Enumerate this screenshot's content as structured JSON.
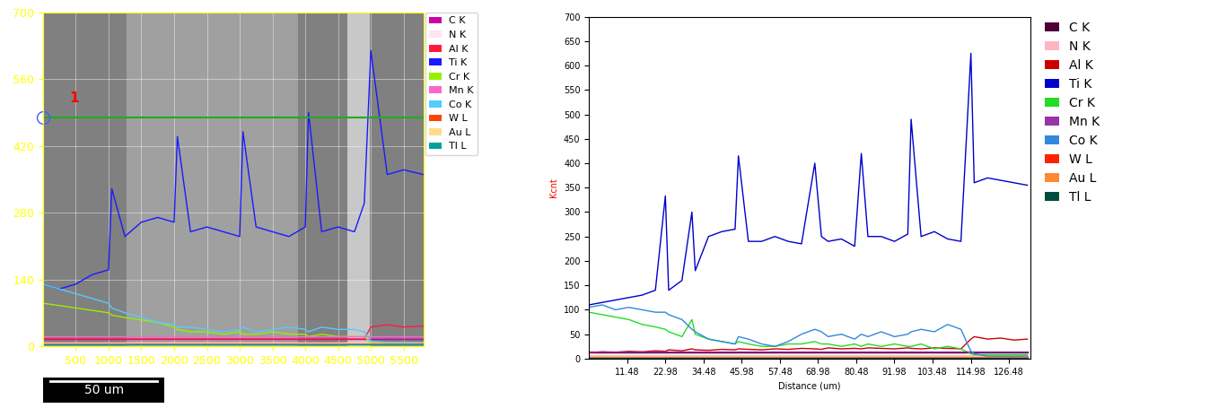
{
  "chart_data": [
    {
      "type": "line",
      "grid": true,
      "legend": "upper left",
      "annotations": [
        "1",
        "50 um"
      ],
      "xlim": [
        0,
        5800
      ],
      "ylim": [
        0,
        700
      ],
      "xticks": [
        500,
        1000,
        1500,
        2000,
        2500,
        3000,
        3500,
        4000,
        4500,
        5000,
        5500
      ],
      "yticks": [
        0,
        140,
        280,
        420,
        560,
        700
      ],
      "x": [
        0,
        250,
        500,
        750,
        1000,
        1050,
        1250,
        1500,
        1750,
        2000,
        2050,
        2250,
        2500,
        2750,
        3000,
        3050,
        3250,
        3500,
        3750,
        4000,
        4050,
        4250,
        4500,
        4750,
        4900,
        5000,
        5250,
        5500,
        5800
      ],
      "series": [
        {
          "name": "C K",
          "color": "#cc00aa",
          "values": [
            15,
            15,
            15,
            15,
            15,
            15,
            15,
            15,
            15,
            15,
            15,
            15,
            15,
            15,
            15,
            15,
            15,
            15,
            15,
            15,
            15,
            15,
            15,
            15,
            15,
            15,
            15,
            15,
            15
          ]
        },
        {
          "name": "N K",
          "color": "#ffe6f0",
          "values": [
            8,
            8,
            8,
            8,
            8,
            8,
            8,
            8,
            8,
            8,
            8,
            8,
            8,
            8,
            8,
            8,
            8,
            8,
            8,
            8,
            8,
            8,
            8,
            8,
            8,
            8,
            8,
            8,
            8
          ]
        },
        {
          "name": "Al K",
          "color": "#ff1a3c",
          "values": [
            15,
            15,
            15,
            15,
            15,
            15,
            15,
            15,
            15,
            15,
            15,
            15,
            15,
            15,
            15,
            15,
            15,
            15,
            15,
            15,
            15,
            15,
            15,
            15,
            15,
            40,
            45,
            40,
            42
          ]
        },
        {
          "name": "Ti K",
          "color": "#1a1aff",
          "values": [
            130,
            120,
            130,
            150,
            160,
            330,
            230,
            260,
            270,
            260,
            440,
            240,
            250,
            240,
            230,
            450,
            250,
            240,
            230,
            250,
            490,
            240,
            250,
            240,
            300,
            620,
            360,
            370,
            360
          ]
        },
        {
          "name": "Cr K",
          "color": "#99ee00",
          "values": [
            90,
            85,
            80,
            75,
            70,
            65,
            60,
            55,
            50,
            40,
            35,
            30,
            30,
            25,
            30,
            25,
            25,
            30,
            25,
            25,
            20,
            25,
            20,
            20,
            20,
            8,
            8,
            8,
            8
          ]
        },
        {
          "name": "Mn K",
          "color": "#ff66cc",
          "values": [
            20,
            20,
            20,
            20,
            20,
            20,
            20,
            20,
            20,
            20,
            20,
            20,
            20,
            20,
            20,
            20,
            20,
            20,
            20,
            20,
            20,
            20,
            20,
            20,
            20,
            20,
            20,
            20,
            20
          ]
        },
        {
          "name": "Co K",
          "color": "#55ccff",
          "values": [
            130,
            120,
            110,
            100,
            90,
            80,
            70,
            60,
            50,
            45,
            40,
            40,
            35,
            30,
            35,
            40,
            30,
            35,
            40,
            35,
            30,
            40,
            35,
            35,
            30,
            10,
            8,
            8,
            8
          ]
        },
        {
          "name": "W L",
          "color": "#ff4400",
          "values": [
            5,
            5,
            5,
            5,
            5,
            5,
            5,
            5,
            5,
            5,
            5,
            5,
            5,
            5,
            5,
            5,
            5,
            5,
            5,
            5,
            5,
            5,
            5,
            5,
            5,
            5,
            5,
            5,
            5
          ]
        },
        {
          "name": "Au L",
          "color": "#ffdd88",
          "values": [
            4,
            4,
            4,
            4,
            4,
            4,
            4,
            4,
            4,
            4,
            4,
            4,
            4,
            4,
            4,
            4,
            4,
            4,
            4,
            4,
            4,
            4,
            4,
            4,
            4,
            4,
            4,
            4,
            4
          ]
        },
        {
          "name": "Tl L",
          "color": "#00a0a0",
          "values": [
            3,
            3,
            3,
            3,
            3,
            3,
            3,
            3,
            3,
            3,
            3,
            3,
            3,
            3,
            3,
            3,
            3,
            3,
            3,
            3,
            3,
            3,
            3,
            3,
            3,
            3,
            3,
            3,
            3
          ]
        }
      ]
    },
    {
      "type": "line",
      "grid": false,
      "legend": "upper left",
      "x_label": "Distance (um)",
      "y_label": "Kcnt",
      "xlim": [
        0,
        133
      ],
      "ylim": [
        0,
        700
      ],
      "xticks": [
        11.48,
        22.98,
        34.48,
        45.98,
        57.48,
        68.98,
        80.48,
        91.98,
        103.48,
        114.98,
        126.48
      ],
      "yticks": [
        0,
        50,
        100,
        150,
        200,
        250,
        300,
        350,
        400,
        450,
        500,
        550,
        600,
        650,
        700
      ],
      "x": [
        0,
        4,
        8,
        12,
        16,
        20,
        23,
        24,
        28,
        31,
        32,
        36,
        40,
        44,
        45,
        48,
        52,
        56,
        60,
        64,
        68,
        70,
        72,
        76,
        80,
        82,
        84,
        88,
        92,
        96,
        97,
        100,
        104,
        108,
        112,
        115,
        116,
        120,
        124,
        128,
        132
      ],
      "series": [
        {
          "name": "C K",
          "color": "#4b0036",
          "values": [
            12,
            12,
            12,
            12,
            12,
            12,
            12,
            12,
            12,
            12,
            12,
            12,
            12,
            12,
            12,
            12,
            12,
            12,
            12,
            12,
            12,
            12,
            12,
            12,
            12,
            12,
            12,
            12,
            12,
            12,
            12,
            12,
            12,
            12,
            12,
            12,
            12,
            12,
            12,
            12,
            12
          ]
        },
        {
          "name": "N K",
          "color": "#ffb6c1",
          "values": [
            8,
            8,
            8,
            8,
            8,
            8,
            8,
            8,
            8,
            8,
            8,
            8,
            8,
            8,
            8,
            8,
            8,
            8,
            8,
            8,
            8,
            8,
            8,
            8,
            8,
            8,
            8,
            8,
            8,
            8,
            8,
            8,
            8,
            8,
            8,
            8,
            8,
            8,
            8,
            8,
            8
          ]
        },
        {
          "name": "Al K",
          "color": "#cc0000",
          "values": [
            12,
            14,
            13,
            15,
            14,
            16,
            15,
            18,
            16,
            20,
            18,
            17,
            19,
            18,
            20,
            19,
            18,
            20,
            19,
            21,
            20,
            19,
            22,
            20,
            21,
            20,
            22,
            21,
            20,
            22,
            21,
            20,
            22,
            21,
            20,
            40,
            45,
            40,
            42,
            38,
            40
          ]
        },
        {
          "name": "Ti K",
          "color": "#0000cc",
          "values": [
            110,
            115,
            120,
            125,
            130,
            140,
            333,
            140,
            160,
            300,
            180,
            250,
            260,
            265,
            415,
            240,
            240,
            250,
            240,
            235,
            400,
            250,
            240,
            245,
            230,
            420,
            250,
            250,
            240,
            255,
            490,
            250,
            260,
            245,
            240,
            625,
            360,
            370,
            365,
            360,
            355
          ]
        },
        {
          "name": "Cr K",
          "color": "#22dd22",
          "values": [
            95,
            90,
            85,
            80,
            70,
            65,
            60,
            55,
            45,
            80,
            50,
            40,
            35,
            30,
            35,
            30,
            25,
            25,
            30,
            30,
            35,
            30,
            30,
            25,
            30,
            25,
            30,
            25,
            30,
            25,
            25,
            30,
            20,
            25,
            20,
            10,
            8,
            8,
            8,
            8,
            8
          ]
        },
        {
          "name": "Mn K",
          "color": "#9933aa",
          "values": [
            14,
            14,
            14,
            14,
            14,
            14,
            14,
            14,
            14,
            14,
            14,
            14,
            14,
            14,
            14,
            14,
            14,
            14,
            14,
            14,
            14,
            14,
            14,
            14,
            14,
            14,
            14,
            14,
            14,
            14,
            14,
            14,
            14,
            14,
            14,
            14,
            14,
            14,
            14,
            14,
            14
          ]
        },
        {
          "name": "Co K",
          "color": "#3388dd",
          "values": [
            105,
            110,
            100,
            105,
            100,
            95,
            95,
            90,
            80,
            60,
            55,
            40,
            35,
            30,
            45,
            40,
            30,
            25,
            35,
            50,
            60,
            55,
            45,
            50,
            40,
            50,
            45,
            55,
            45,
            50,
            55,
            60,
            55,
            70,
            60,
            15,
            10,
            5,
            5,
            5,
            5
          ]
        },
        {
          "name": "W L",
          "color": "#ff2200",
          "values": [
            4,
            4,
            4,
            4,
            4,
            4,
            4,
            4,
            4,
            4,
            4,
            4,
            4,
            4,
            4,
            4,
            4,
            4,
            4,
            4,
            4,
            4,
            4,
            4,
            4,
            4,
            4,
            4,
            4,
            4,
            4,
            4,
            4,
            4,
            4,
            4,
            4,
            4,
            4,
            4,
            4
          ]
        },
        {
          "name": "Au L",
          "color": "#ff8833",
          "values": [
            3,
            3,
            3,
            3,
            3,
            3,
            3,
            3,
            3,
            3,
            3,
            3,
            3,
            3,
            3,
            3,
            3,
            3,
            3,
            3,
            3,
            3,
            3,
            3,
            3,
            3,
            3,
            3,
            3,
            3,
            3,
            3,
            3,
            3,
            3,
            3,
            3,
            3,
            3,
            3,
            3
          ]
        },
        {
          "name": "Tl L",
          "color": "#004d40",
          "values": [
            2,
            2,
            2,
            2,
            2,
            2,
            2,
            2,
            2,
            2,
            2,
            2,
            2,
            2,
            2,
            2,
            2,
            2,
            2,
            2,
            2,
            2,
            2,
            2,
            2,
            2,
            2,
            2,
            2,
            2,
            2,
            2,
            2,
            2,
            2,
            2,
            2,
            2,
            2,
            2,
            2
          ]
        }
      ]
    }
  ]
}
